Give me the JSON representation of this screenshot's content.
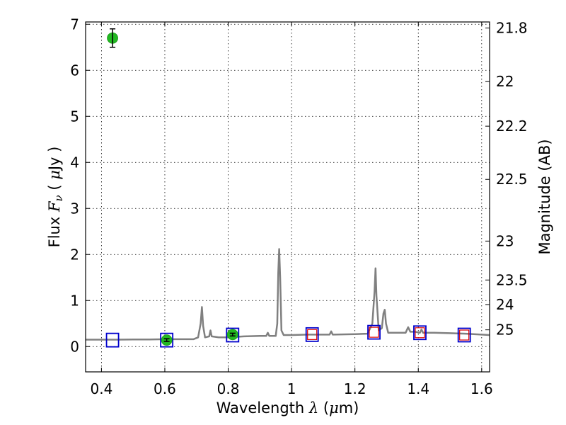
{
  "chart_data": {
    "type": "scatter",
    "xlabel": {
      "prefix": "Wavelength  ",
      "symbol": "λ",
      "unit_open": " (",
      "unit_mu": "μ",
      "unit_close": "m)"
    },
    "ylabel": {
      "prefix": "Flux  ",
      "symbol": "F",
      "sub": "ν",
      "unit_open": "  ( ",
      "unit_mu": "μ",
      "unit_close": "Jy )"
    },
    "y2label": "Magnitude (AB)",
    "xlim": [
      0.35,
      1.625
    ],
    "ylim": [
      -0.55,
      7.05
    ],
    "grid": true,
    "x_ticks": [
      {
        "v": 0.4,
        "label": "0.4"
      },
      {
        "v": 0.6,
        "label": "0.6"
      },
      {
        "v": 0.8,
        "label": "0.8"
      },
      {
        "v": 1.0,
        "label": "1"
      },
      {
        "v": 1.2,
        "label": "1.2"
      },
      {
        "v": 1.4,
        "label": "1.4"
      },
      {
        "v": 1.6,
        "label": "1.6"
      }
    ],
    "y_ticks": [
      {
        "v": 0,
        "label": "0"
      },
      {
        "v": 1,
        "label": "1"
      },
      {
        "v": 2,
        "label": "2"
      },
      {
        "v": 3,
        "label": "3"
      },
      {
        "v": 4,
        "label": "4"
      },
      {
        "v": 5,
        "label": "5"
      },
      {
        "v": 6,
        "label": "6"
      },
      {
        "v": 7,
        "label": "7"
      }
    ],
    "mag_ticks": [
      {
        "mag": 21.8,
        "label": "21.8"
      },
      {
        "mag": 22,
        "label": "22"
      },
      {
        "mag": 22.2,
        "label": "22.2"
      },
      {
        "mag": 22.5,
        "label": "22.5"
      },
      {
        "mag": 23,
        "label": "23"
      },
      {
        "mag": 23.5,
        "label": "23.5"
      },
      {
        "mag": 24,
        "label": "24"
      },
      {
        "mag": 25,
        "label": "25"
      }
    ],
    "spectrum": {
      "color": "#808080",
      "points": [
        [
          0.35,
          0.15
        ],
        [
          0.4,
          0.15
        ],
        [
          0.45,
          0.15
        ],
        [
          0.5,
          0.155
        ],
        [
          0.55,
          0.155
        ],
        [
          0.6,
          0.16
        ],
        [
          0.65,
          0.16
        ],
        [
          0.69,
          0.16
        ],
        [
          0.705,
          0.2
        ],
        [
          0.713,
          0.5
        ],
        [
          0.717,
          0.86
        ],
        [
          0.721,
          0.45
        ],
        [
          0.727,
          0.2
        ],
        [
          0.74,
          0.22
        ],
        [
          0.744,
          0.35
        ],
        [
          0.748,
          0.22
        ],
        [
          0.77,
          0.2
        ],
        [
          0.8,
          0.2
        ],
        [
          0.85,
          0.22
        ],
        [
          0.9,
          0.23
        ],
        [
          0.92,
          0.23
        ],
        [
          0.925,
          0.3
        ],
        [
          0.93,
          0.23
        ],
        [
          0.95,
          0.23
        ],
        [
          0.955,
          0.5
        ],
        [
          0.958,
          1.6
        ],
        [
          0.961,
          2.12
        ],
        [
          0.964,
          1.5
        ],
        [
          0.968,
          0.35
        ],
        [
          0.975,
          0.25
        ],
        [
          1.0,
          0.25
        ],
        [
          1.05,
          0.26
        ],
        [
          1.1,
          0.26
        ],
        [
          1.12,
          0.26
        ],
        [
          1.125,
          0.33
        ],
        [
          1.13,
          0.26
        ],
        [
          1.2,
          0.27
        ],
        [
          1.24,
          0.28
        ],
        [
          1.255,
          0.5
        ],
        [
          1.262,
          1.2
        ],
        [
          1.265,
          1.7
        ],
        [
          1.268,
          1.1
        ],
        [
          1.275,
          0.35
        ],
        [
          1.285,
          0.4
        ],
        [
          1.29,
          0.72
        ],
        [
          1.294,
          0.8
        ],
        [
          1.298,
          0.5
        ],
        [
          1.305,
          0.3
        ],
        [
          1.35,
          0.3
        ],
        [
          1.36,
          0.3
        ],
        [
          1.368,
          0.42
        ],
        [
          1.375,
          0.32
        ],
        [
          1.39,
          0.32
        ],
        [
          1.405,
          0.3
        ],
        [
          1.41,
          0.37
        ],
        [
          1.415,
          0.3
        ],
        [
          1.45,
          0.3
        ],
        [
          1.5,
          0.29
        ],
        [
          1.55,
          0.28
        ],
        [
          1.625,
          0.25
        ]
      ]
    },
    "green_points": {
      "color": "#22b822",
      "points": [
        {
          "x": 0.435,
          "y": 6.7,
          "yerr": 0.2
        },
        {
          "x": 0.606,
          "y": 0.14,
          "yerr": 0.03
        },
        {
          "x": 0.814,
          "y": 0.26,
          "yerr": 0.03
        }
      ]
    },
    "blue_squares": {
      "color": "#0000cc",
      "points": [
        {
          "x": 0.435,
          "y": 0.14
        },
        {
          "x": 0.606,
          "y": 0.14
        },
        {
          "x": 0.814,
          "y": 0.25
        },
        {
          "x": 1.065,
          "y": 0.26
        },
        {
          "x": 1.26,
          "y": 0.31
        },
        {
          "x": 1.405,
          "y": 0.3
        },
        {
          "x": 1.545,
          "y": 0.25
        }
      ]
    },
    "red_squares": {
      "color": "#dd0000",
      "points": [
        {
          "x": 1.065,
          "y": 0.26
        },
        {
          "x": 1.26,
          "y": 0.31
        },
        {
          "x": 1.405,
          "y": 0.3
        },
        {
          "x": 1.545,
          "y": 0.25
        }
      ]
    }
  }
}
